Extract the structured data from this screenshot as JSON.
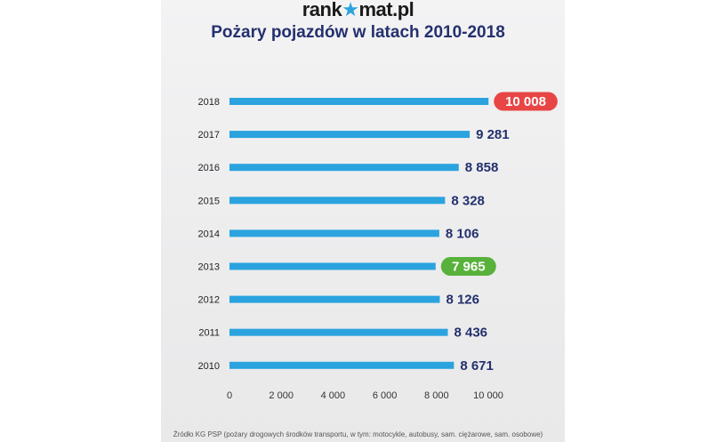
{
  "logo": {
    "prefix": "rank",
    "mark": "★",
    "suffix": "mat.pl"
  },
  "chart_data": {
    "type": "bar",
    "orientation": "horizontal",
    "title": "Pożary pojazdów w latach 2010-2018",
    "categories": [
      "2018",
      "2017",
      "2016",
      "2015",
      "2014",
      "2013",
      "2012",
      "2011",
      "2010"
    ],
    "values": [
      10008,
      9281,
      8858,
      8328,
      8106,
      7965,
      8126,
      8436,
      8671
    ],
    "value_labels": [
      "10 008",
      "9 281",
      "8 858",
      "8 328",
      "8 106",
      "7 965",
      "8 126",
      "8 436",
      "8 671"
    ],
    "highlight": {
      "max_index": 0,
      "min_index": 5
    },
    "xlim": [
      0,
      10000
    ],
    "x_ticks": [
      0,
      2000,
      4000,
      6000,
      8000,
      10000
    ],
    "x_tick_labels": [
      "0",
      "2 000",
      "4 000",
      "6 000",
      "8 000",
      "10 000"
    ],
    "grid": false,
    "colors": {
      "bar": "#2aa3df",
      "max_badge": "#e84545",
      "min_badge": "#58b13b",
      "label": "#24306e"
    }
  },
  "source": "Źródło KG PSP (pożary drogowych środków transportu, w tym: motocykle, autobusy, sam. ciężarowe, sam. osobowe)"
}
